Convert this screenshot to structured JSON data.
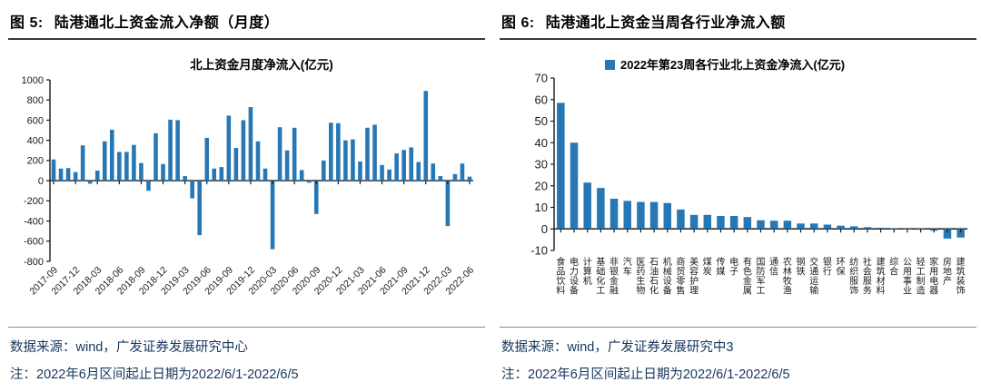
{
  "colors": {
    "bar_blue": "#2777b4",
    "footer_navy": "#17365d",
    "caption_black": "#000000",
    "axis_black": "#1a1a1a",
    "rule_dark": "#3a3a3a",
    "rule_light": "#8a8a8a"
  },
  "panels": [
    {
      "caption_prefix": "图 5:",
      "caption": "陆港通北上资金流入净额（月度）",
      "source": "数据来源：wind，广发证券发展研究中心",
      "note": "注：2022年6月区间起止日期为2022/6/1-2022/6/5"
    },
    {
      "caption_prefix": "图 6:",
      "caption": "陆港通北上资金当周各行业净流入额",
      "source": "数据来源：wind，广发证券发展研究中3",
      "note": "注：2022年6月区间起止日期为2022/6/1-2022/6/5"
    }
  ],
  "chart_data": [
    {
      "type": "bar",
      "title": "北上资金月度净流入(亿元)",
      "xlabel": "",
      "ylabel": "",
      "ylim": [
        -800,
        1000
      ],
      "ytick_step": 200,
      "grid": false,
      "legend": null,
      "legend_position": "none",
      "bar_color": "#2777b4",
      "x_tick_every": 3,
      "categories": [
        "2017-09",
        "2017-10",
        "2017-11",
        "2017-12",
        "2018-01",
        "2018-02",
        "2018-03",
        "2018-04",
        "2018-05",
        "2018-06",
        "2018-07",
        "2018-08",
        "2018-09",
        "2018-10",
        "2018-11",
        "2018-12",
        "2019-01",
        "2019-02",
        "2019-03",
        "2019-04",
        "2019-05",
        "2019-06",
        "2019-07",
        "2019-08",
        "2019-09",
        "2019-10",
        "2019-11",
        "2019-12",
        "2020-01",
        "2020-02",
        "2020-03",
        "2020-04",
        "2020-05",
        "2020-06",
        "2020-07",
        "2020-08",
        "2020-09",
        "2020-10",
        "2020-11",
        "2020-12",
        "2021-01",
        "2021-02",
        "2021-03",
        "2021-04",
        "2021-05",
        "2021-06",
        "2021-07",
        "2021-08",
        "2021-09",
        "2021-10",
        "2021-11",
        "2021-12",
        "2022-01",
        "2022-02",
        "2022-03",
        "2022-04",
        "2022-05",
        "2022-06"
      ],
      "values": [
        210,
        120,
        125,
        85,
        350,
        -30,
        100,
        390,
        505,
        285,
        285,
        355,
        175,
        -100,
        470,
        165,
        605,
        600,
        45,
        -175,
        -540,
        425,
        120,
        135,
        645,
        325,
        600,
        730,
        390,
        120,
        -680,
        530,
        300,
        525,
        105,
        -20,
        -330,
        200,
        575,
        570,
        400,
        410,
        190,
        525,
        555,
        155,
        110,
        270,
        305,
        330,
        185,
        890,
        170,
        45,
        -450,
        65,
        170,
        40
      ],
      "visible_x_tick_labels": [
        "2017-09",
        "2017-12",
        "2018-03",
        "2018-06",
        "2018-09",
        "2018-12",
        "2019-03",
        "2019-06",
        "2019-09",
        "2019-12",
        "2020-03",
        "2020-06",
        "2020-09",
        "2020-12",
        "2021-03",
        "2021-06",
        "2021-09",
        "2021-12",
        "2022-03",
        "2022-06"
      ]
    },
    {
      "type": "bar",
      "title": "",
      "xlabel": "",
      "ylabel": "",
      "ylim": [
        -10,
        70
      ],
      "ytick_step": 10,
      "grid": false,
      "legend": "2022年第23周各行业北上资金净流入(亿元)",
      "legend_position": "top",
      "bar_color": "#2777b4",
      "x_tick_every": 1,
      "categories": [
        "食品饮料",
        "电力设备",
        "计算机",
        "基础化工",
        "非银金融",
        "汽车",
        "医药生物",
        "石油石化",
        "机械设备",
        "商贸零售",
        "美容护理",
        "煤炭",
        "传媒",
        "电子",
        "有色金属",
        "国防军工",
        "通信",
        "农林牧渔",
        "钢铁",
        "交通运输",
        "银行",
        "环保",
        "纺织服饰",
        "社会服务",
        "建筑材料",
        "综合",
        "公用事业",
        "轻工制造",
        "家用电器",
        "房地产",
        "建筑装饰"
      ],
      "values": [
        58.5,
        40,
        21.5,
        19,
        14,
        13,
        12.5,
        12.5,
        12,
        9,
        6.5,
        6.5,
        6,
        6,
        5.5,
        4,
        3.8,
        3.8,
        2.5,
        2.5,
        2,
        1.5,
        1.2,
        0.8,
        0.5,
        0.3,
        -0.2,
        -0.4,
        -0.8,
        -4.5,
        -4
      ]
    }
  ]
}
